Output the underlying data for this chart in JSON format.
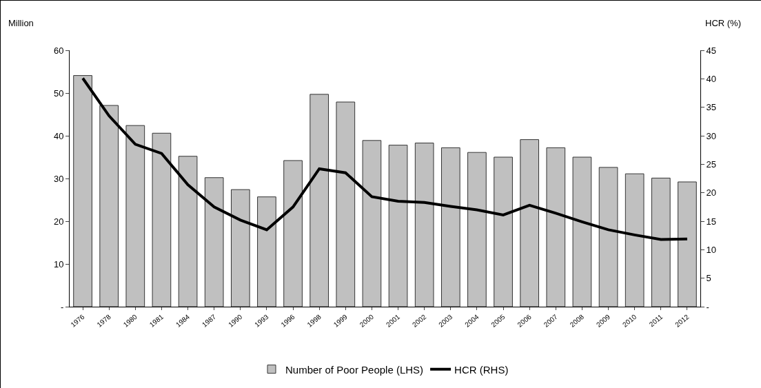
{
  "chart_data": {
    "type": "bar",
    "ylabel": "Million",
    "y2label": "HCR (%)",
    "categories": [
      "1976",
      "1978",
      "1980",
      "1981",
      "1984",
      "1987",
      "1990",
      "1993",
      "1996",
      "1998",
      "1999",
      "2000",
      "2001",
      "2002",
      "2003",
      "2004",
      "2005",
      "2006",
      "2007",
      "2008",
      "2009",
      "2010",
      "2011",
      "2012"
    ],
    "series": [
      {
        "name": "Number of Poor People (LHS)",
        "color": "#c0c0c0",
        "values": [
          54.1,
          47.1,
          42.4,
          40.6,
          35.2,
          30.2,
          27.4,
          25.7,
          34.2,
          49.7,
          47.9,
          38.9,
          37.8,
          38.3,
          37.2,
          36.1,
          35.0,
          39.1,
          37.2,
          35.0,
          32.6,
          31.1,
          30.1,
          29.2
        ]
      },
      {
        "name": "HCR (RHS)",
        "type": "line",
        "axis": "y2",
        "color": "#000000",
        "values": [
          40.1,
          33.5,
          28.5,
          26.9,
          21.4,
          17.5,
          15.2,
          13.5,
          17.5,
          24.2,
          23.5,
          19.3,
          18.5,
          18.3,
          17.6,
          17.0,
          16.1,
          17.8,
          16.4,
          14.9,
          13.5,
          12.6,
          11.8,
          11.9
        ]
      }
    ],
    "ylim": [
      0,
      60
    ],
    "yticks": [
      {
        "value": 0,
        "label": "-"
      },
      10,
      20,
      30,
      40,
      50,
      60
    ],
    "y2lim": [
      0,
      45
    ],
    "y2ticks": [
      {
        "value": 0,
        "label": "-"
      },
      5,
      10,
      15,
      20,
      25,
      30,
      35,
      40,
      45
    ],
    "grid": false,
    "legend": "bottom",
    "marker": "none",
    "line_style": "solid"
  }
}
